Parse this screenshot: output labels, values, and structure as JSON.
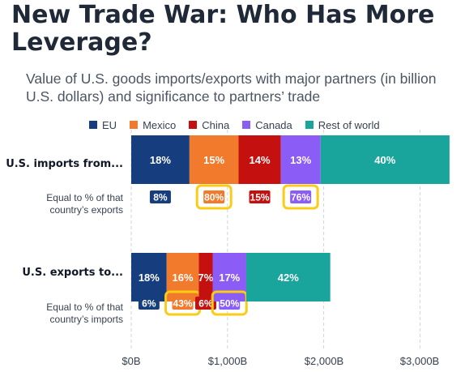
{
  "header": {
    "title": "New Trade War: Who Has More Leverage?",
    "subtitle": "Value of U.S. goods imports/exports with major partners (in billion U.S. dollars) and significance to partners’ trade"
  },
  "legend": [
    {
      "label": "EU",
      "color": "#163e7f"
    },
    {
      "label": "Mexico",
      "color": "#f27a2c"
    },
    {
      "label": "China",
      "color": "#c4100f"
    },
    {
      "label": "Canada",
      "color": "#8b5cf6"
    },
    {
      "label": "Rest of world",
      "color": "#1aa59c"
    }
  ],
  "rows": {
    "imports": {
      "label": "U.S. imports from...",
      "sub_label_line1": "Equal to % of that",
      "sub_label_line2": "country’s exports"
    },
    "exports": {
      "label": "U.S. exports to...",
      "sub_label_line1": "Equal to % of that",
      "sub_label_line2": "country’s imports"
    }
  },
  "axis": {
    "ticks": [
      "$0B",
      "$1,000B",
      "$2,000B",
      "$3,000B"
    ]
  },
  "chart_data": {
    "type": "bar",
    "orientation": "horizontal",
    "stacked": true,
    "categories": [
      "U.S. imports from...",
      "U.S. exports to..."
    ],
    "xlim": [
      0,
      3150
    ],
    "x_ticks": [
      0,
      1000,
      2000,
      3000
    ],
    "grid": true,
    "legend_position": "top",
    "series": [
      {
        "name": "EU",
        "color": "#163e7f",
        "values": [
          605,
          368
        ],
        "share_labels": [
          "18%",
          "18%"
        ],
        "significance": [
          "8%",
          "6%"
        ],
        "highlight": [
          false,
          false
        ]
      },
      {
        "name": "Mexico",
        "color": "#f27a2c",
        "values": [
          510,
          334
        ],
        "share_labels": [
          "15%",
          "16%"
        ],
        "significance": [
          "80%",
          "43%"
        ],
        "highlight": [
          true,
          true
        ]
      },
      {
        "name": "China",
        "color": "#c4100f",
        "values": [
          439,
          144
        ],
        "share_labels": [
          "14%",
          "7%"
        ],
        "significance": [
          "15%",
          "6%"
        ],
        "highlight": [
          false,
          false
        ]
      },
      {
        "name": "Canada",
        "color": "#8b5cf6",
        "values": [
          413,
          349
        ],
        "share_labels": [
          "13%",
          "17%"
        ],
        "significance": [
          "76%",
          "50%"
        ],
        "highlight": [
          true,
          true
        ]
      },
      {
        "name": "Rest of world",
        "color": "#1aa59c",
        "values": [
          1340,
          873
        ],
        "share_labels": [
          "40%",
          "42%"
        ],
        "significance": [
          null,
          null
        ],
        "highlight": [
          false,
          false
        ]
      }
    ]
  }
}
